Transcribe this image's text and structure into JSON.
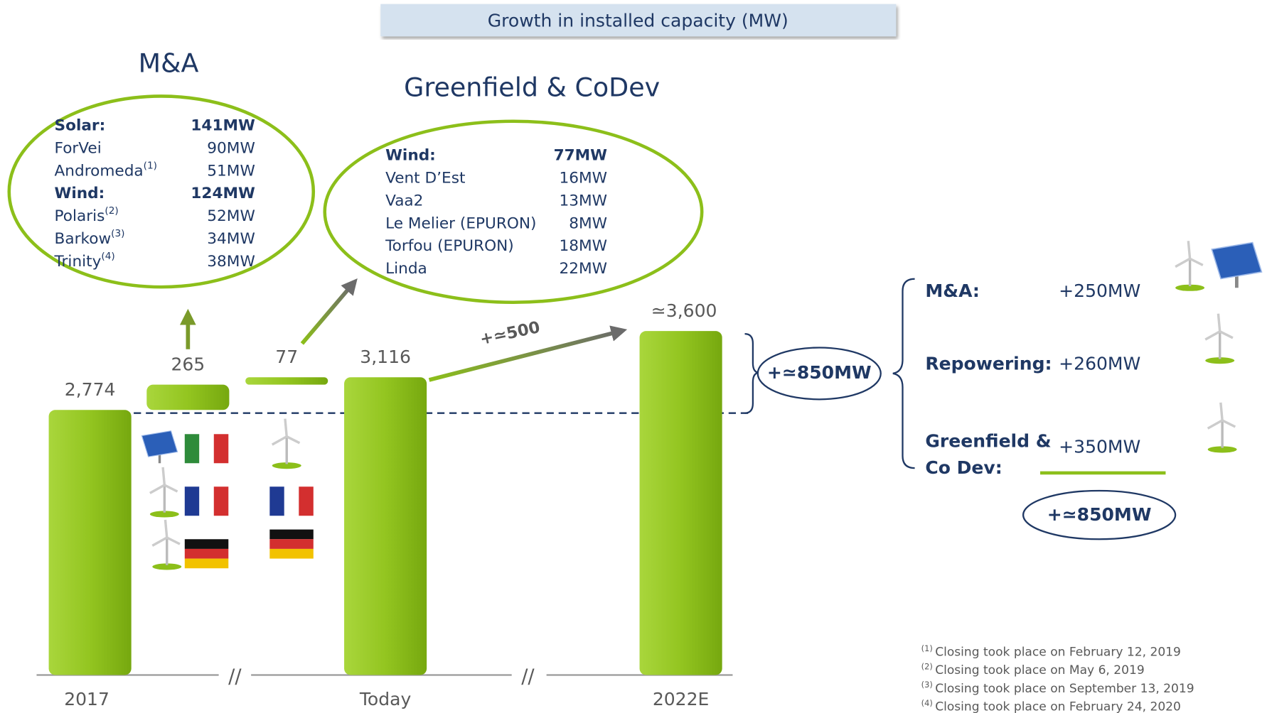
{
  "header": {
    "title": "Growth in installed capacity (MW)"
  },
  "chart_data": {
    "type": "waterfall",
    "categories": [
      "2017",
      null,
      null,
      "Today",
      "2022E"
    ],
    "values": [
      2774,
      265,
      77,
      3116,
      3600
    ],
    "value_labels": [
      "2,774",
      "265",
      "77",
      "3,116",
      "≃3,600"
    ],
    "color": "#8cbf1a",
    "axis_break": "//",
    "growth_arrow_label": "+≃500",
    "bracket_label": "+≃850MW"
  },
  "ma_box": {
    "title": "M&A",
    "rows": [
      {
        "name": "Solar:",
        "value": "141MW",
        "bold": true
      },
      {
        "name": "ForVei",
        "value": "90MW"
      },
      {
        "name": "Andromeda",
        "note": "(1)",
        "value": "51MW"
      },
      {
        "name": "Wind:",
        "value": "124MW",
        "bold": true
      },
      {
        "name": "Polaris",
        "note": "(2)",
        "value": "52MW"
      },
      {
        "name": "Barkow",
        "note": "(3)",
        "value": "34MW"
      },
      {
        "name": "Trinity",
        "note": "(4)",
        "value": "38MW"
      }
    ]
  },
  "greenfield_box": {
    "title": "Greenfield & CoDev",
    "rows": [
      {
        "name": "Wind:",
        "value": "77MW",
        "bold": true
      },
      {
        "name": "Vent D’Est",
        "value": "16MW"
      },
      {
        "name": "Vaa2",
        "value": "13MW"
      },
      {
        "name": "Le Melier (EPURON)",
        "value": "8MW"
      },
      {
        "name": "Torfou (EPURON)",
        "value": "18MW"
      },
      {
        "name": "Linda",
        "value": "22MW"
      }
    ]
  },
  "breakdown": {
    "rows": [
      {
        "label": [
          "M&A:"
        ],
        "value": "+250MW"
      },
      {
        "label": [
          "Repowering:"
        ],
        "value": "+260MW"
      },
      {
        "label": [
          "Greenfield &",
          "Co Dev:"
        ],
        "value": "+350MW"
      }
    ],
    "total": "+≃850MW"
  },
  "footnotes": [
    {
      "note": "(1)",
      "text": "Closing took place on February 12, 2019"
    },
    {
      "note": "(2)",
      "text": "Closing took place on May 6, 2019"
    },
    {
      "note": "(3)",
      "text": "Closing took place on September 13, 2019"
    },
    {
      "note": "(4)",
      "text": "Closing took place on February 24, 2020"
    }
  ]
}
